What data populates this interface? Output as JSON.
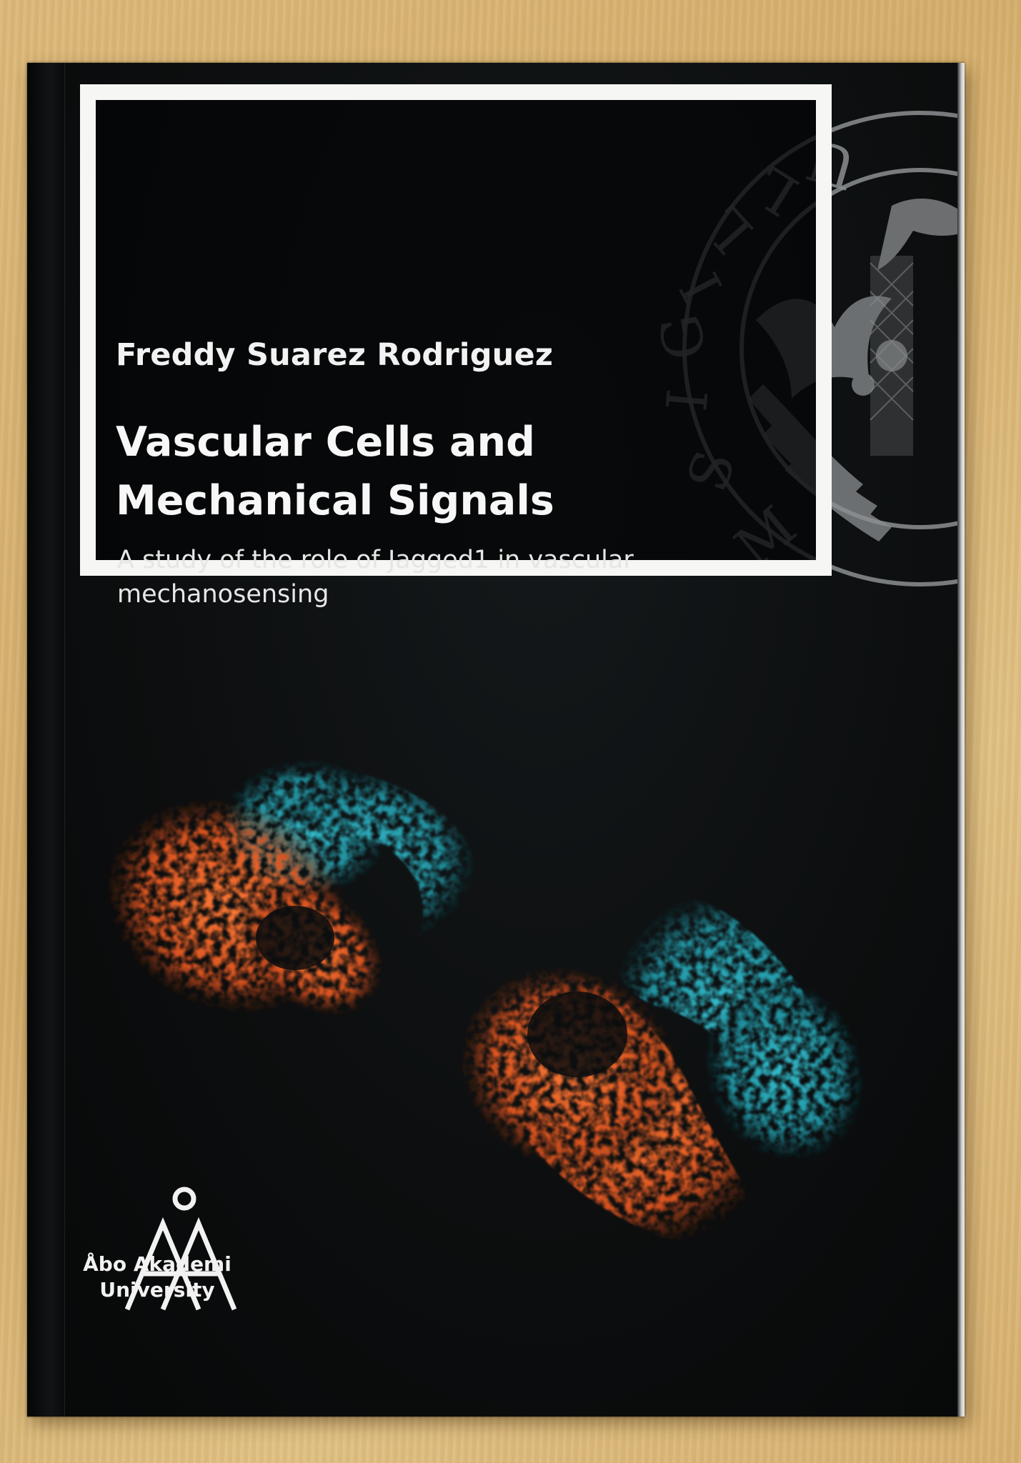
{
  "cover": {
    "author": "Freddy Suarez Rodriguez",
    "title_line1": "Vascular Cells and",
    "title_line2": "Mechanical Signals",
    "subtitle_line1": "A study of the role of Jagged1 in vascular",
    "subtitle_line2": "mechanosensing"
  },
  "seal": {
    "text": "SIGILLUM"
  },
  "logo": {
    "mark": "ÅA",
    "name_line1": "Åbo Akademi",
    "name_line2": "University"
  },
  "colors": {
    "cover_background": "#0c0e0f",
    "frame": "#f6f6f4",
    "cell_orange": "#e8612a",
    "cell_cyan": "#2aa3b3",
    "seal_gray": "#8c8f91",
    "table_wood": "#d9b574"
  }
}
